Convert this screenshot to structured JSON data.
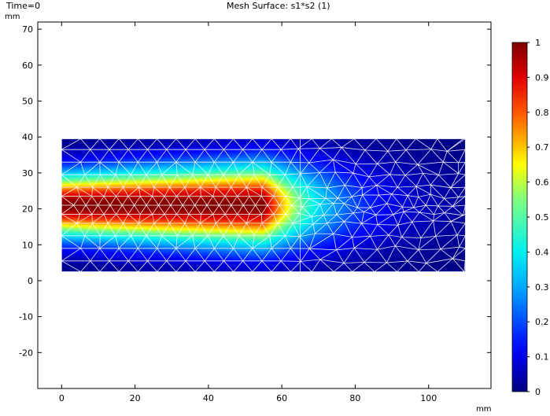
{
  "header": {
    "time_label": "Time=0",
    "plot_title": "Mesh  Surface: s1*s2 (1)"
  },
  "chart_data": {
    "type": "heatmap",
    "title": "Mesh  Surface: s1*s2 (1)",
    "xlabel": "mm",
    "ylabel": "mm",
    "xlim": [
      -6.5,
      117
    ],
    "ylim": [
      -30,
      72
    ],
    "x_ticks": [
      0,
      20,
      40,
      60,
      80,
      100
    ],
    "y_ticks": [
      -20,
      -10,
      0,
      10,
      20,
      30,
      40,
      50,
      60,
      70
    ],
    "domain": {
      "x": [
        0,
        110
      ],
      "y": [
        2.5,
        39.5
      ]
    },
    "centerline_y": 21,
    "colormap": "Rainbow",
    "mesh": "triangular",
    "colorbar": {
      "min": 0,
      "max": 1,
      "ticks": [
        "0",
        "0.1",
        "0.2",
        "0.3",
        "0.4",
        "0.5",
        "0.6",
        "0.7",
        "0.8",
        "0.9",
        "1"
      ]
    },
    "field_profile": {
      "core_full_until_x": 55,
      "core_decay_end_x": 95,
      "half_width_start": 9,
      "half_width_growth_per_mm": 0.05
    },
    "grid": false,
    "colors": {
      "mesh_lines": "#ffffff",
      "frame": "#000000"
    }
  }
}
